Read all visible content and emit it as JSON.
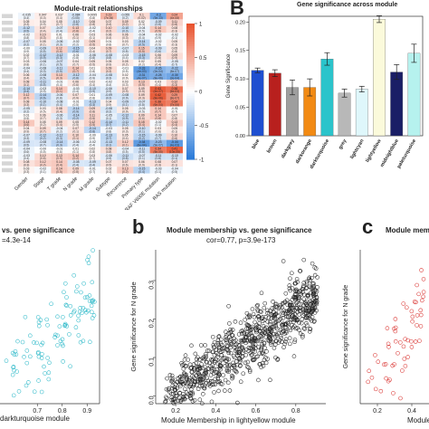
{
  "panel_A": {
    "title": "Module-trait relationships",
    "colorbar_ticks": [
      "1",
      "0.5",
      "0",
      "-0.5",
      "-1"
    ],
    "traits": [
      "Gender",
      "Stage",
      "T grade",
      "N grade",
      "M grade",
      "Subtype",
      "Recurrence",
      "Primary type",
      "BRAF V600E mutation",
      "RAS mutation"
    ],
    "top_row_values": [
      "-0.035",
      "0.047",
      "0.037",
      "-0.084",
      "0.0095",
      "0.19",
      "-0.055",
      "0.1",
      "-0.3",
      "0.24"
    ],
    "top_row_pvalues": [
      "(0.4)",
      "(0.3)",
      "(0.4)",
      "(0.05)",
      "(0.8)",
      "(7e-06)",
      "(0.2)",
      "(0.02)",
      "(3e-13)",
      "(4e-08)"
    ]
  },
  "panel_B": {
    "letter": "B",
    "title": "Gene significance across module",
    "ylabel": "Gene Significance",
    "ytick_labels": [
      "0.00",
      "0.05",
      "0.10",
      "0.15",
      "0.20"
    ]
  },
  "panel_scatter_left": {
    "title": "vs. gene significance",
    "sub": "=4.3e-14",
    "xlabel": "darkturquoise module",
    "xtick_labels": [
      "0.7",
      "0.8",
      "0.9"
    ]
  },
  "panel_b": {
    "letter": "b",
    "title": "Module membership vs. gene significance",
    "sub": "cor=0.77, p=3.9e-173",
    "xlabel": "Module Membership in lightyellow module",
    "ylabel": "Gene significance for N grade",
    "xtick_labels": [
      "0.2",
      "0.4",
      "0.6",
      "0.8"
    ],
    "ytick_labels": [
      "0.0",
      "0.1",
      "0.2",
      "0.3"
    ]
  },
  "panel_c": {
    "letter": "c",
    "title": "Module membe",
    "ylabel": "Gene significance for N grade",
    "xlabel": "Module",
    "xtick_labels": [
      "0.2",
      "0.4"
    ]
  },
  "colors": {
    "heat_pos": "#e8532f",
    "heat_neg": "#2b7bd8",
    "scatter_left": "#2ab8c8",
    "scatter_mid": "#222222",
    "scatter_right": "#d9312e"
  },
  "chart_data": [
    {
      "type": "bar",
      "categories": [
        "blue",
        "brown",
        "darkgrey",
        "darkorange",
        "darkturquoise",
        "grey",
        "lightcyan",
        "lightyellow",
        "midnightblue",
        "paleturquoise"
      ],
      "values": [
        0.115,
        0.11,
        0.085,
        0.085,
        0.135,
        0.075,
        0.082,
        0.205,
        0.112,
        0.145
      ],
      "errors": [
        0.004,
        0.006,
        0.013,
        0.015,
        0.011,
        0.007,
        0.005,
        0.006,
        0.013,
        0.016
      ],
      "colors": [
        "#1f4fd0",
        "#b8201e",
        "#9e9e9e",
        "#f28a13",
        "#2bc4cb",
        "#b8b8b8",
        "#dff7fb",
        "#fbfadb",
        "#1a1e66",
        "#b6f2ee"
      ],
      "ylabel": "Gene Significance",
      "ylim": [
        0,
        0.21
      ]
    },
    {
      "type": "scatter",
      "xlabel": "Module Membership in lightyellow module",
      "ylabel": "Gene significance for N grade",
      "xlim": [
        0.1,
        0.95
      ],
      "ylim": [
        -0.02,
        0.38
      ],
      "trend": {
        "slope": 0.35,
        "intercept": -0.06,
        "noise": 0.04
      },
      "n_points": 900
    }
  ]
}
